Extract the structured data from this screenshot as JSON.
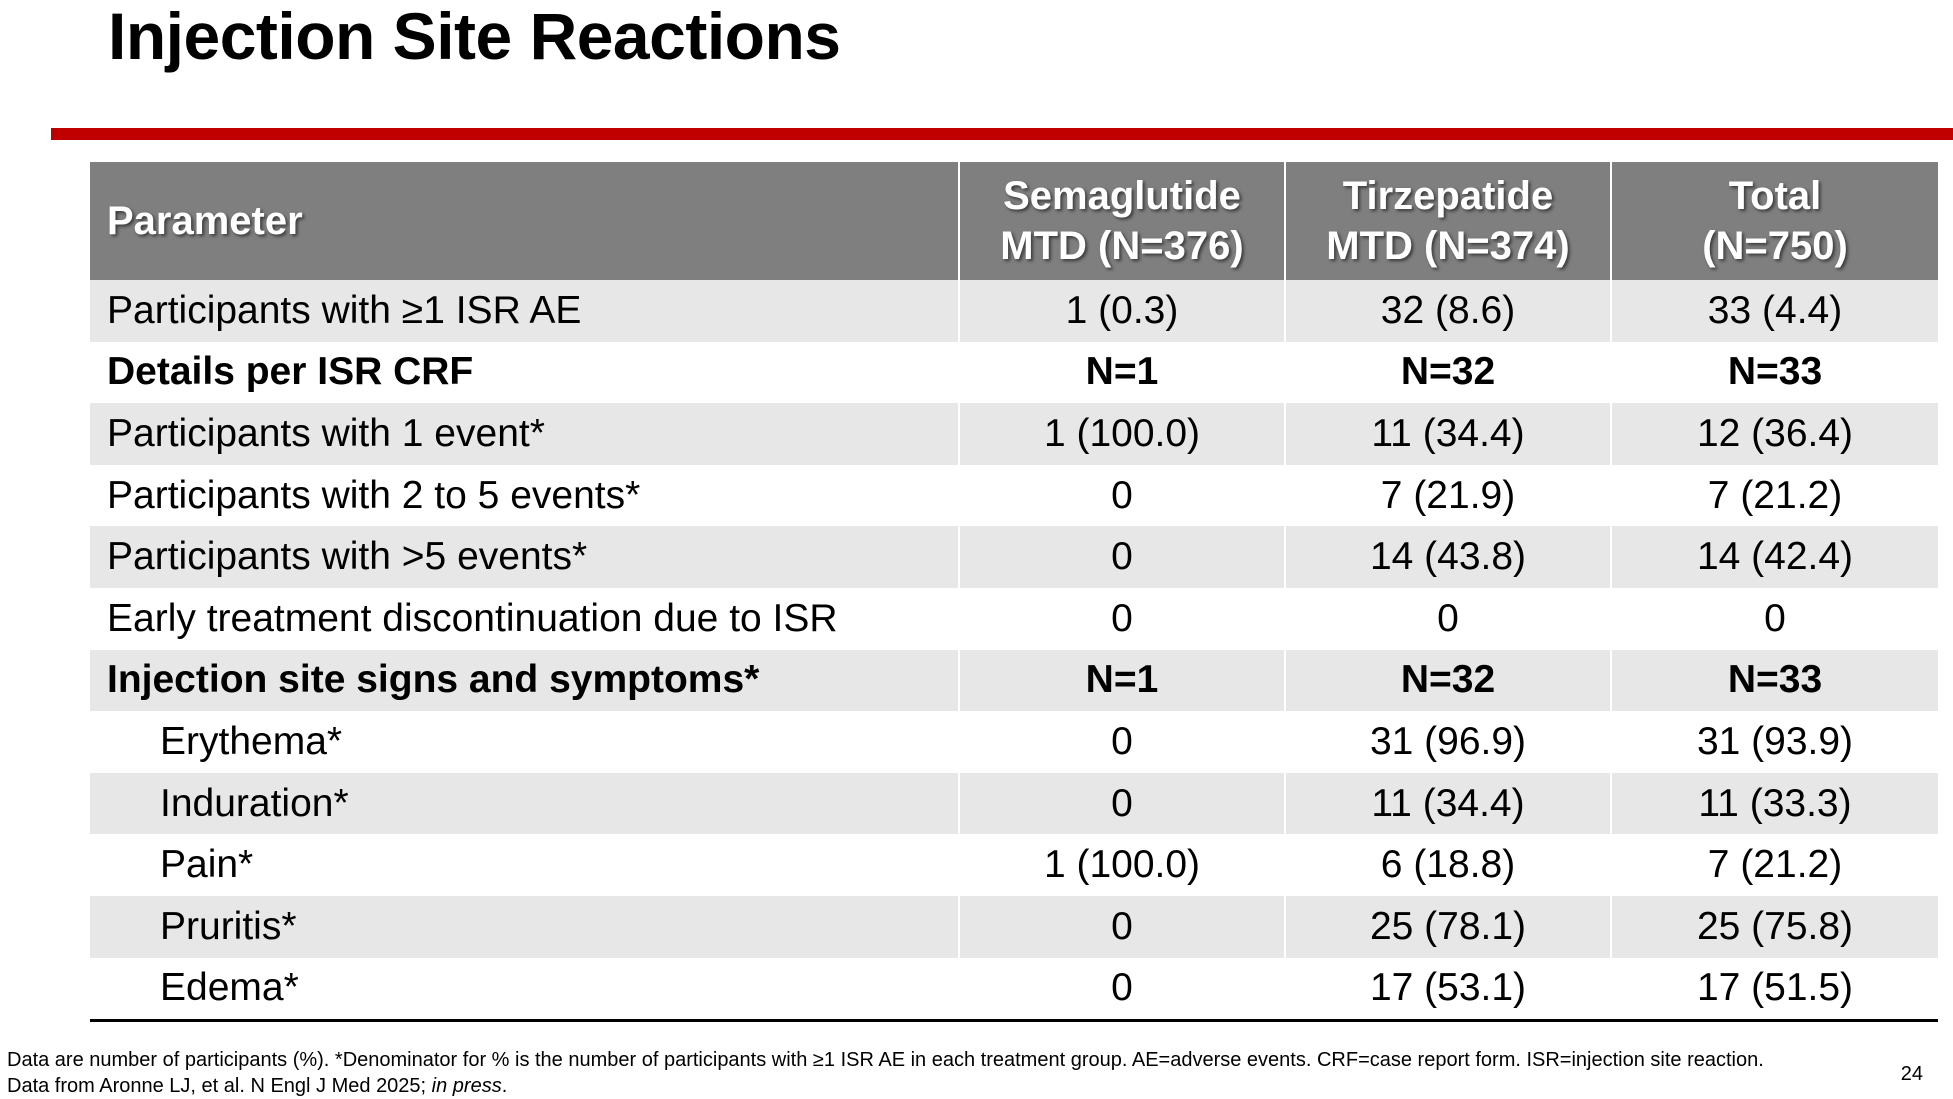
{
  "title": "Injection Site Reactions",
  "colors": {
    "accent_rule": "#c00000",
    "header_bg": "#7f7f7f",
    "row_shade": "#e7e7e7"
  },
  "table": {
    "headers": {
      "parameter": "Parameter",
      "semaglutide_line1": "Semaglutide",
      "semaglutide_line2": "MTD (N=376)",
      "tirzepatide_line1": "Tirzepatide",
      "tirzepatide_line2": "MTD (N=374)",
      "total_line1": "Total",
      "total_line2": "(N=750)"
    },
    "rows": [
      {
        "label": "Participants with ≥1 ISR AE",
        "semaglutide": "1 (0.3)",
        "tirzepatide": "32 (8.6)",
        "total": "33 (4.4)"
      },
      {
        "label": "Details per ISR CRF",
        "semaglutide": "N=1",
        "tirzepatide": "N=32",
        "total": "N=33"
      },
      {
        "label": "Participants with 1 event*",
        "semaglutide": "1 (100.0)",
        "tirzepatide": "11 (34.4)",
        "total": "12 (36.4)"
      },
      {
        "label": "Participants with 2 to 5 events*",
        "semaglutide": "0",
        "tirzepatide": "7 (21.9)",
        "total": "7 (21.2)"
      },
      {
        "label": "Participants with >5 events*",
        "semaglutide": "0",
        "tirzepatide": "14 (43.8)",
        "total": "14 (42.4)"
      },
      {
        "label": "Early treatment discontinuation due to ISR",
        "semaglutide": "0",
        "tirzepatide": "0",
        "total": "0"
      },
      {
        "label": "Injection site signs and symptoms*",
        "semaglutide": "N=1",
        "tirzepatide": "N=32",
        "total": "N=33"
      },
      {
        "label": "Erythema*",
        "semaglutide": "0",
        "tirzepatide": "31 (96.9)",
        "total": "31 (93.9)"
      },
      {
        "label": "Induration*",
        "semaglutide": "0",
        "tirzepatide": "11 (34.4)",
        "total": "11 (33.3)"
      },
      {
        "label": "Pain*",
        "semaglutide": "1 (100.0)",
        "tirzepatide": "6 (18.8)",
        "total": "7 (21.2)"
      },
      {
        "label": "Pruritis*",
        "semaglutide": "0",
        "tirzepatide": "25 (78.1)",
        "total": "25 (75.8)"
      },
      {
        "label": "Edema*",
        "semaglutide": "0",
        "tirzepatide": "17 (53.1)",
        "total": "17 (51.5)"
      }
    ]
  },
  "footnote": {
    "line1": "Data are number of participants (%). *Denominator for % is the number of participants with ≥1 ISR AE in each treatment group. AE=adverse events. CRF=case report form. ISR=injection site reaction.",
    "line2_prefix": "Data from Aronne LJ, et al. N Engl J Med 2025; ",
    "line2_italic": "in press",
    "line2_suffix": "."
  },
  "page_number": "24"
}
